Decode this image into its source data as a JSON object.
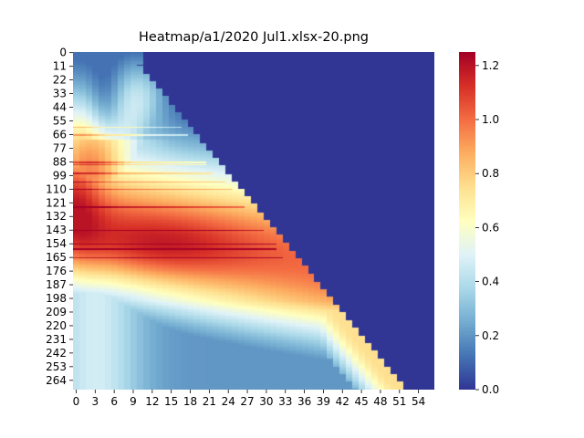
{
  "chart_data": {
    "type": "heatmap",
    "title": "Heatmap/a1/2020 Jul1.xlsx-20.png",
    "n_rows": 272,
    "n_cols": 57,
    "x_tick_labels": [
      "0",
      "3",
      "6",
      "9",
      "12",
      "15",
      "18",
      "21",
      "24",
      "27",
      "30",
      "33",
      "36",
      "39",
      "42",
      "45",
      "48",
      "51",
      "54"
    ],
    "y_tick_labels": [
      "0",
      "11",
      "22",
      "33",
      "44",
      "55",
      "66",
      "77",
      "88",
      "99",
      "110",
      "121",
      "132",
      "143",
      "154",
      "165",
      "176",
      "187",
      "198",
      "209",
      "220",
      "231",
      "242",
      "253",
      "264"
    ],
    "colorbar_ticks": [
      "0.0",
      "0.2",
      "0.4",
      "0.6",
      "0.8",
      "1.0",
      "1.2"
    ],
    "vmin": 0,
    "vmax": 1.25,
    "colormap": "RdYlBu_r",
    "mask_value": 0,
    "description_of_pattern": {
      "masked_region": "upper-right triangle above diagonal from (col 10,row 10) to (col 52,row 271)",
      "peak_rows": [
        88,
        160
      ],
      "peak_value": 1.25
    }
  },
  "colors": {
    "low": "#313695",
    "mid": "#ffffbf",
    "high": "#a50026"
  }
}
